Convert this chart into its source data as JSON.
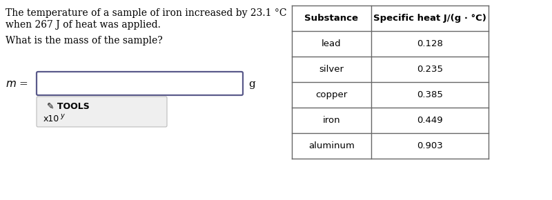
{
  "problem_line1": "The temperature of a sample of iron increased by 23.1 °C",
  "problem_line2": "when 267 J of heat was applied.",
  "question": "What is the mass of the sample?",
  "m_label": "m =",
  "unit_label": "g",
  "tools_label": "✎ TOOLS",
  "table_headers": [
    "Substance",
    "Specific heat J/(g · °C)"
  ],
  "table_rows": [
    [
      "lead",
      "0.128"
    ],
    [
      "silver",
      "0.235"
    ],
    [
      "copper",
      "0.385"
    ],
    [
      "iron",
      "0.449"
    ],
    [
      "aluminum",
      "0.903"
    ]
  ],
  "bg_color": "#ffffff",
  "text_color": "#000000",
  "box_edge_color": "#5a5a8a",
  "tools_bg": "#efefef",
  "tools_border": "#bbbbbb",
  "table_border_color": "#666666"
}
